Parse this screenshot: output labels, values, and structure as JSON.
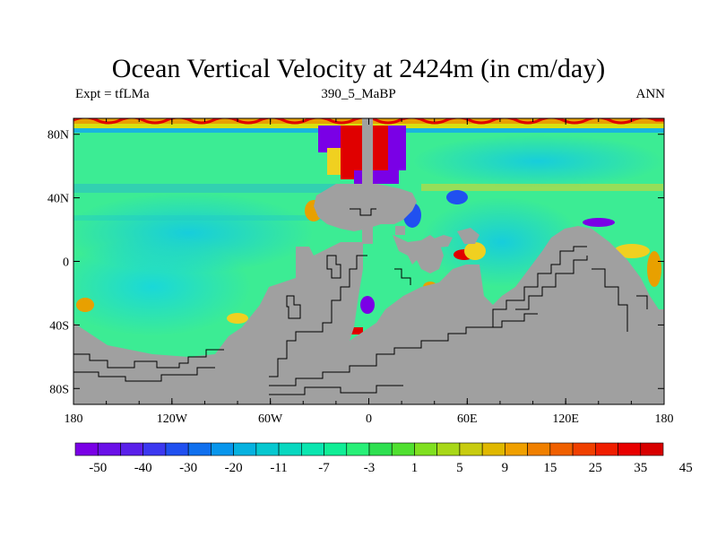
{
  "title": "Ocean Vertical Velocity at 2424m (in cm/day)",
  "subtitle_left": "Expt = tfLMa",
  "subtitle_center": "390_5_MaBP",
  "subtitle_right": "ANN",
  "chart_data": {
    "type": "heatmap",
    "title": "Ocean Vertical Velocity at 2424m (in cm/day)",
    "x_ticks": [
      "180",
      "120W",
      "60W",
      "0",
      "60E",
      "120E",
      "180"
    ],
    "x_tick_values": [
      -180,
      -120,
      -60,
      0,
      60,
      120,
      180
    ],
    "y_ticks": [
      "80N",
      "40N",
      "0",
      "40S",
      "80S"
    ],
    "y_tick_values": [
      80,
      40,
      0,
      -40,
      -80
    ],
    "xlim": [
      -180,
      180
    ],
    "ylim": [
      -90,
      90
    ],
    "colorbar_labels": [
      "-50",
      "-40",
      "-30",
      "-20",
      "-11",
      "-7",
      "-3",
      "1",
      "5",
      "9",
      "15",
      "25",
      "35",
      "45"
    ],
    "colorbar_colors": [
      "#7a00e6",
      "#6a10e8",
      "#5a20ea",
      "#3c38f0",
      "#2050f0",
      "#1070ee",
      "#0896ec",
      "#06b2e0",
      "#06c8d0",
      "#08d8c0",
      "#0ae6b0",
      "#10ee96",
      "#28f078",
      "#2ee050",
      "#50e030",
      "#80e020",
      "#a8d818",
      "#c8cc10",
      "#e0b800",
      "#f0a000",
      "#f08000",
      "#f06000",
      "#f04000",
      "#f01e00",
      "#e80000",
      "#d80000"
    ],
    "land_color": "#a0a0a0",
    "ocean_background_color": "#40ee90"
  }
}
